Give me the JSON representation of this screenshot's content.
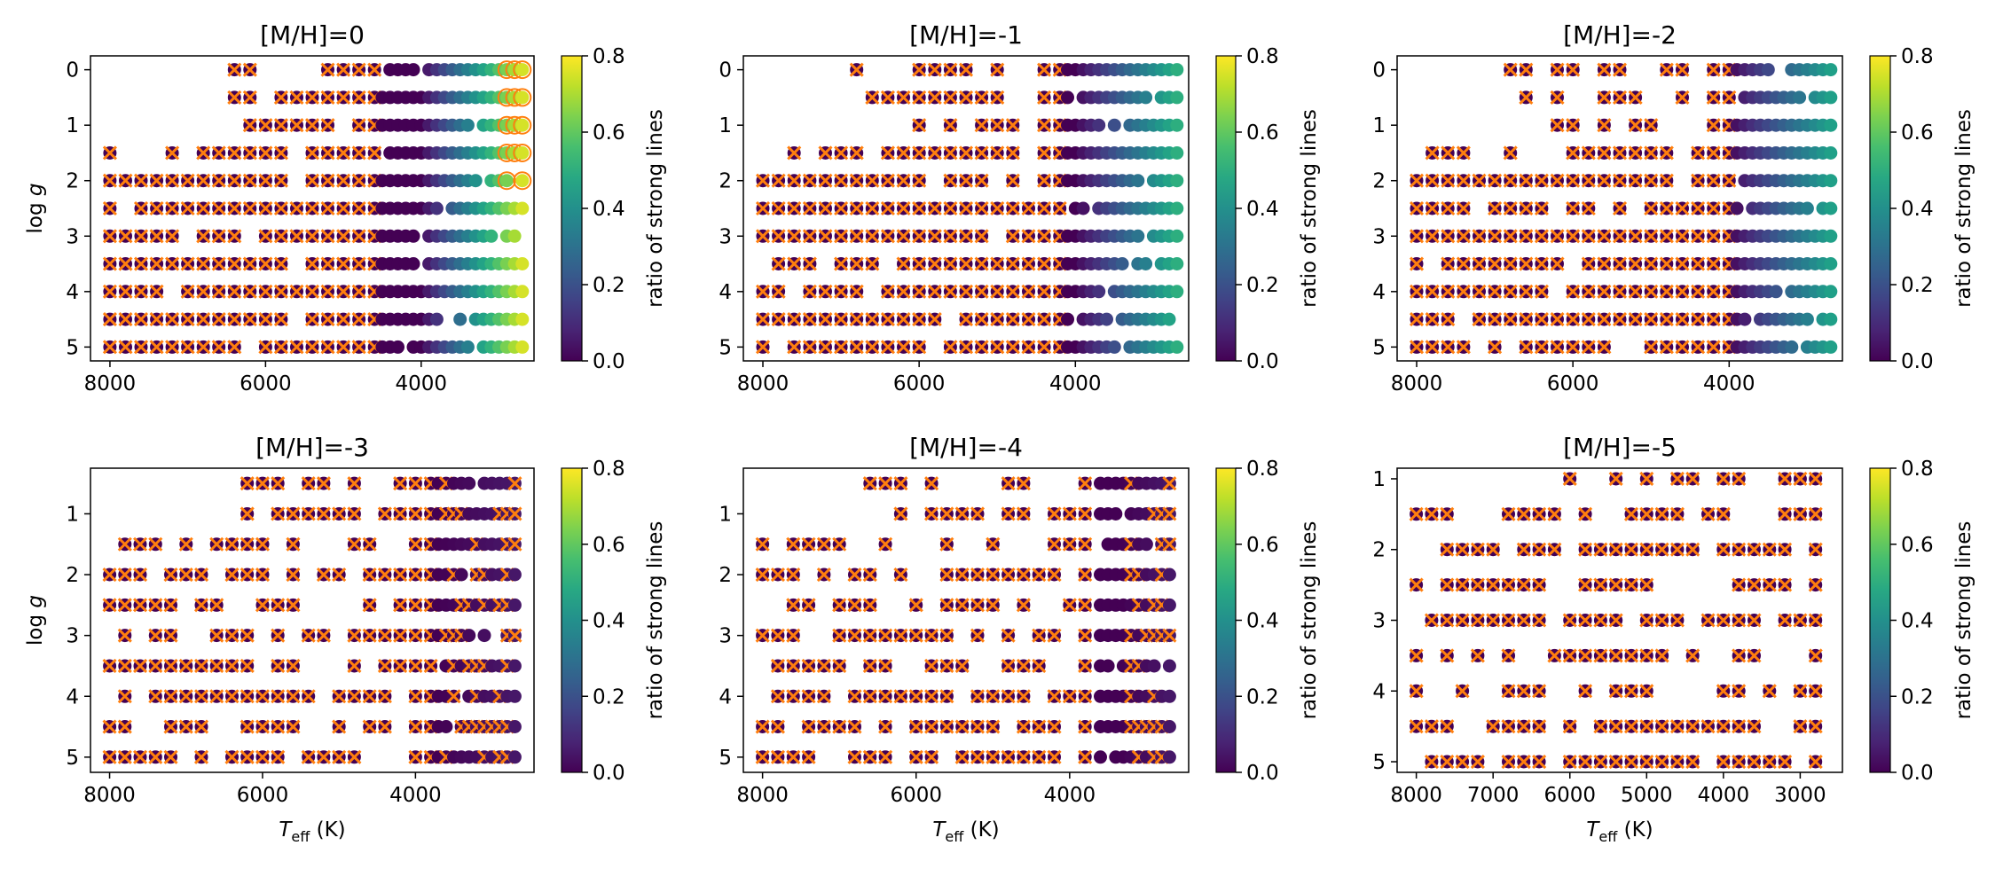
{
  "figure": {
    "ylabel": "log g",
    "xlabel_main": "T",
    "xlabel_sub": "eff",
    "xlabel_unit": " (K)",
    "colorbar_label": "ratio of strong lines",
    "colorbar_ticks": [
      "0.0",
      "0.2",
      "0.4",
      "0.6",
      "0.8"
    ],
    "colors": {
      "marker_fill": "#3b0f70",
      "cross": "#ff7f0e",
      "ring": "#ff7f0e"
    }
  },
  "chart_data": [
    {
      "type": "scatter",
      "title": "[M/H]=0",
      "colormap": "viridis",
      "crange": [
        0,
        0.8
      ],
      "xlim": [
        8250,
        2550
      ],
      "ylim": [
        5.25,
        -0.25
      ],
      "xticks": [
        8000,
        6000,
        4000
      ],
      "yticks": [
        0,
        1,
        2,
        3,
        4,
        5
      ],
      "x_range": [
        2700,
        8000
      ],
      "y_range": [
        0,
        5
      ],
      "cool_start": 4000,
      "hot_start": 4600,
      "ring_start": 2900,
      "max_ratio": 0.75
    },
    {
      "type": "scatter",
      "title": "[M/H]=-1",
      "colormap": "viridis",
      "crange": [
        0,
        0.8
      ],
      "xlim": [
        8250,
        2550
      ],
      "ylim": [
        5.25,
        -0.25
      ],
      "xticks": [
        8000,
        6000,
        4000
      ],
      "yticks": [
        0,
        1,
        2,
        3,
        4,
        5
      ],
      "x_range": [
        2700,
        8000
      ],
      "y_range": [
        0,
        5
      ],
      "cool_start": 4000,
      "hot_start": 4200,
      "ring_start": 0,
      "max_ratio": 0.5
    },
    {
      "type": "scatter",
      "title": "[M/H]=-2",
      "colormap": "viridis",
      "crange": [
        0,
        0.8
      ],
      "xlim": [
        8250,
        2550
      ],
      "ylim": [
        5.25,
        -0.25
      ],
      "xticks": [
        8000,
        6000,
        4000
      ],
      "yticks": [
        0,
        1,
        2,
        3,
        4,
        5
      ],
      "x_range": [
        2700,
        8000
      ],
      "y_range": [
        0,
        5
      ],
      "cool_start": 4000,
      "hot_start": 4000,
      "ring_start": 0,
      "max_ratio": 0.45
    },
    {
      "type": "scatter",
      "title": "[M/H]=-3",
      "colormap": "viridis",
      "crange": [
        0,
        0.8
      ],
      "xlim": [
        8250,
        2450
      ],
      "ylim": [
        5.25,
        0.25
      ],
      "xticks": [
        8000,
        6000,
        4000
      ],
      "yticks": [
        1,
        2,
        3,
        4,
        5
      ],
      "x_range": [
        2700,
        8000
      ],
      "y_range": [
        0.5,
        5
      ],
      "cool_start": 3700,
      "hot_start": 3800,
      "ring_start": 0,
      "max_ratio": 0.05
    },
    {
      "type": "scatter",
      "title": "[M/H]=-4",
      "colormap": "viridis",
      "crange": [
        0,
        0.8
      ],
      "xlim": [
        8250,
        2450
      ],
      "ylim": [
        5.25,
        0.25
      ],
      "xticks": [
        8000,
        6000,
        4000
      ],
      "yticks": [
        1,
        2,
        3,
        4,
        5
      ],
      "x_range": [
        2700,
        8000
      ],
      "y_range": [
        0.5,
        5
      ],
      "cool_start": 3300,
      "hot_start": 3700,
      "ring_start": 0,
      "max_ratio": 0.05
    },
    {
      "type": "scatter",
      "title": "[M/H]=-5",
      "colormap": "viridis",
      "crange": [
        0,
        0.8
      ],
      "xlim": [
        8250,
        2450
      ],
      "ylim": [
        5.15,
        0.85
      ],
      "xticks": [
        8000,
        7000,
        6000,
        5000,
        4000,
        3000
      ],
      "yticks": [
        1,
        2,
        3,
        4,
        5
      ],
      "x_range": [
        2700,
        8000
      ],
      "y_range": [
        1,
        5
      ],
      "cool_start": 2000,
      "hot_start": 2600,
      "ring_start": 0,
      "max_ratio": 0.05
    }
  ]
}
